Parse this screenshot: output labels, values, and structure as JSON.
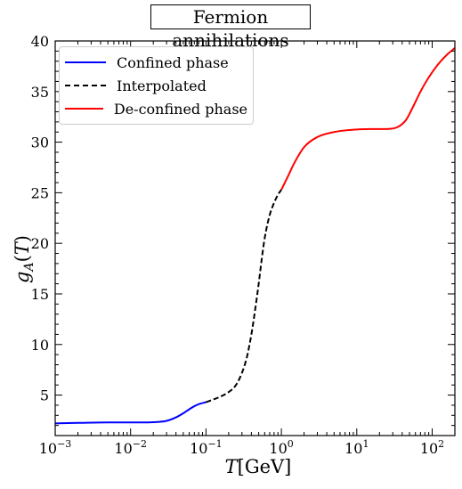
{
  "title": "Fermion annihilations",
  "colors": {
    "confined": "#0000ff",
    "interpolated": "#000000",
    "deconfined": "#ff0000"
  },
  "chart_data": {
    "type": "line",
    "title": "Fermion annihilations",
    "xlabel": "T[GeV]",
    "ylabel": "g_A(T)",
    "xscale": "log",
    "xlim": [
      0.001,
      200
    ],
    "ylim": [
      1,
      40
    ],
    "grid": false,
    "legend_position": "top-left",
    "xticks": [
      {
        "value": 0.001,
        "base": "10",
        "exp": "−3"
      },
      {
        "value": 0.01,
        "base": "10",
        "exp": "−2"
      },
      {
        "value": 0.1,
        "base": "10",
        "exp": "−1"
      },
      {
        "value": 1,
        "base": "10",
        "exp": "0"
      },
      {
        "value": 10,
        "base": "10",
        "exp": "1"
      },
      {
        "value": 100,
        "base": "10",
        "exp": "2"
      }
    ],
    "yticks": [
      5,
      10,
      15,
      20,
      25,
      30,
      35,
      40
    ],
    "series": [
      {
        "name": "Confined phase",
        "color": "#0000ff",
        "style": "solid",
        "points": [
          [
            0.001,
            2.2
          ],
          [
            0.002,
            2.25
          ],
          [
            0.005,
            2.3
          ],
          [
            0.01,
            2.3
          ],
          [
            0.02,
            2.32
          ],
          [
            0.03,
            2.45
          ],
          [
            0.04,
            2.8
          ],
          [
            0.05,
            3.2
          ],
          [
            0.06,
            3.6
          ],
          [
            0.07,
            3.9
          ],
          [
            0.08,
            4.1
          ],
          [
            0.1,
            4.3
          ]
        ]
      },
      {
        "name": "Interpolated",
        "color": "#000000",
        "style": "dashed",
        "points": [
          [
            0.1,
            4.3
          ],
          [
            0.15,
            4.8
          ],
          [
            0.2,
            5.3
          ],
          [
            0.25,
            6.0
          ],
          [
            0.3,
            7.2
          ],
          [
            0.35,
            8.8
          ],
          [
            0.4,
            11.0
          ],
          [
            0.45,
            13.5
          ],
          [
            0.5,
            16.0
          ],
          [
            0.55,
            18.5
          ],
          [
            0.6,
            20.5
          ],
          [
            0.7,
            22.8
          ],
          [
            0.8,
            24.0
          ],
          [
            0.9,
            24.8
          ],
          [
            1.0,
            25.3
          ]
        ]
      },
      {
        "name": "De-confined phase",
        "color": "#ff0000",
        "style": "solid",
        "points": [
          [
            1.0,
            25.3
          ],
          [
            1.2,
            26.5
          ],
          [
            1.5,
            28.0
          ],
          [
            2,
            29.5
          ],
          [
            3,
            30.5
          ],
          [
            5,
            31.0
          ],
          [
            8,
            31.2
          ],
          [
            15,
            31.3
          ],
          [
            25,
            31.3
          ],
          [
            35,
            31.5
          ],
          [
            45,
            32.2
          ],
          [
            55,
            33.4
          ],
          [
            70,
            35.0
          ],
          [
            90,
            36.4
          ],
          [
            120,
            37.7
          ],
          [
            160,
            38.7
          ],
          [
            200,
            39.3
          ]
        ]
      }
    ]
  }
}
